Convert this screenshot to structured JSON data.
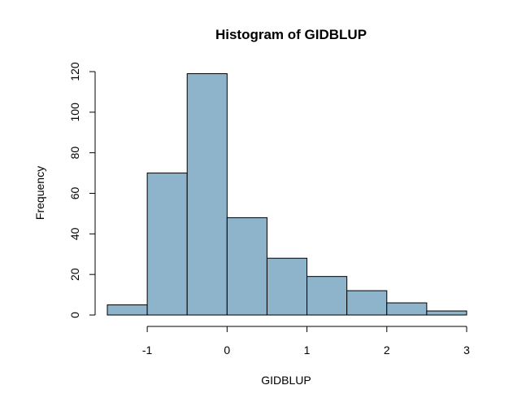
{
  "chart_data": {
    "type": "bar",
    "title": "Histogram of GIDBLUP",
    "xlabel": "GIDBLUP",
    "ylabel": "Frequency",
    "bins": [
      {
        "from": -1.5,
        "to": -1.0,
        "count": 5
      },
      {
        "from": -1.0,
        "to": -0.5,
        "count": 70
      },
      {
        "from": -0.5,
        "to": 0.0,
        "count": 119
      },
      {
        "from": 0.0,
        "to": 0.5,
        "count": 48
      },
      {
        "from": 0.5,
        "to": 1.0,
        "count": 28
      },
      {
        "from": 1.0,
        "to": 1.5,
        "count": 19
      },
      {
        "from": 1.5,
        "to": 2.0,
        "count": 12
      },
      {
        "from": 2.0,
        "to": 2.5,
        "count": 6
      },
      {
        "from": 2.5,
        "to": 3.0,
        "count": 2
      }
    ],
    "xlim": [
      -1.5,
      3.0
    ],
    "ylim": [
      0,
      120
    ],
    "x_ticks": [
      -1,
      0,
      1,
      2,
      3
    ],
    "x_tick_labels": [
      "-1",
      "0",
      "1",
      "2",
      "3"
    ],
    "y_ticks": [
      0,
      20,
      40,
      60,
      80,
      100,
      120
    ],
    "y_tick_labels": [
      "0",
      "20",
      "40",
      "60",
      "80",
      "100",
      "120"
    ],
    "grid": false,
    "bar_color": "#8db4cb",
    "bar_edge_color": "#000000"
  }
}
